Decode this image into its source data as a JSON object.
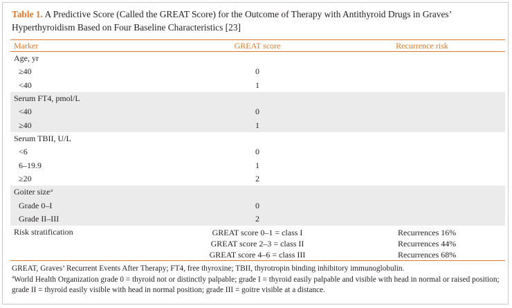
{
  "caption": {
    "label": "Table 1.",
    "text": "A Predictive Score (Called the GREAT Score) for the Outcome of Therapy with Antithyroid Drugs in Graves’ Hyperthyroidism Based on Four Baseline Characteristics [23]"
  },
  "table": {
    "headers": {
      "marker": "Marker",
      "score": "GREAT score",
      "risk": "Recurrence risk"
    },
    "groups": [
      {
        "title": "Age, yr",
        "sup": "",
        "shaded": false,
        "rows": [
          {
            "label": "≥40",
            "score": "0"
          },
          {
            "label": "<40",
            "score": "1"
          }
        ]
      },
      {
        "title": "Serum FT4, pmol/L",
        "sup": "",
        "shaded": true,
        "rows": [
          {
            "label": "<40",
            "score": "0"
          },
          {
            "label": "≥40",
            "score": "1"
          }
        ]
      },
      {
        "title": "Serum TBII, U/L",
        "sup": "",
        "shaded": false,
        "rows": [
          {
            "label": "<6",
            "score": "0"
          },
          {
            "label": "6–19.9",
            "score": "1"
          },
          {
            "label": "≥20",
            "score": "2"
          }
        ]
      },
      {
        "title": "Goiter size",
        "sup": "a",
        "shaded": true,
        "rows": [
          {
            "label": "Grade 0–I",
            "score": "0"
          },
          {
            "label": "Grade II–III",
            "score": "2"
          }
        ]
      }
    ],
    "stratification": {
      "title": "Risk stratification",
      "rows": [
        {
          "score": "GREAT score 0–1 = class I",
          "risk": "Recurrences 16%"
        },
        {
          "score": "GREAT score 2–3 = class II",
          "risk": "Recurrences 44%"
        },
        {
          "score": "GREAT score 4–6 = class III",
          "risk": "Recurrences 68%"
        }
      ]
    }
  },
  "footnotes": {
    "abbreviations": "GREAT, Graves’ Recurrent Events After Therapy; FT4, free thyroxine; TBII, thyrotropin binding inhibitory immunoglobulin.",
    "note_marker": "a",
    "note": "World Health Organization grade 0 = thyroid not or distinctly palpable; grade I = thyroid easily palpable and visible with head in normal or raised position; grade II = thyroid easily visible with head in normal position; grade III = goitre visible at a distance."
  }
}
